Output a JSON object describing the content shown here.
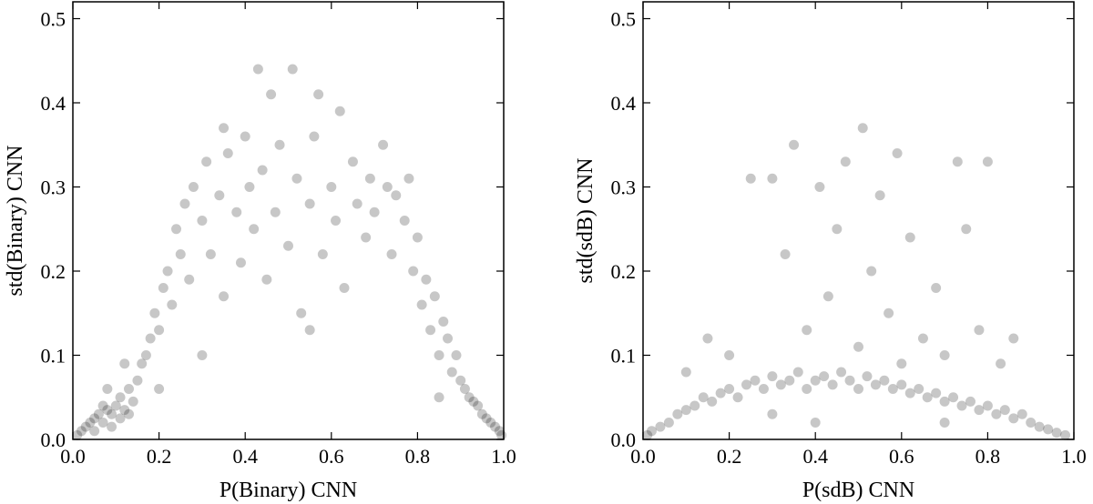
{
  "chart_data": [
    {
      "type": "scatter",
      "xlabel": "P(Binary) CNN",
      "ylabel": "std(Binary) CNN",
      "color": "#000000",
      "opacity": 0.22,
      "xlim": [
        0,
        1
      ],
      "ylim": [
        0,
        0.52
      ],
      "xticks": [
        {
          "value": 0,
          "label": "0.0"
        },
        0.2,
        0.4,
        0.6,
        0.8,
        {
          "value": 1,
          "label": "1.0"
        }
      ],
      "yticks": [
        {
          "value": 0,
          "label": "0.0"
        },
        0.1,
        0.2,
        0.3,
        0.4,
        0.5
      ],
      "x": [
        0.01,
        0.02,
        0.03,
        0.04,
        0.05,
        0.06,
        0.07,
        0.08,
        0.09,
        0.1,
        0.11,
        0.12,
        0.13,
        0.14,
        0.05,
        0.07,
        0.09,
        0.11,
        0.13,
        0.15,
        0.16,
        0.17,
        0.18,
        0.19,
        0.2,
        0.21,
        0.22,
        0.23,
        0.24,
        0.25,
        0.26,
        0.27,
        0.28,
        0.3,
        0.31,
        0.32,
        0.34,
        0.35,
        0.36,
        0.38,
        0.39,
        0.4,
        0.41,
        0.42,
        0.43,
        0.44,
        0.45,
        0.46,
        0.47,
        0.48,
        0.5,
        0.51,
        0.52,
        0.53,
        0.55,
        0.56,
        0.57,
        0.58,
        0.6,
        0.61,
        0.62,
        0.63,
        0.65,
        0.66,
        0.68,
        0.69,
        0.7,
        0.72,
        0.73,
        0.74,
        0.75,
        0.77,
        0.78,
        0.79,
        0.8,
        0.81,
        0.82,
        0.83,
        0.84,
        0.85,
        0.86,
        0.87,
        0.88,
        0.89,
        0.9,
        0.91,
        0.92,
        0.93,
        0.94,
        0.95,
        0.96,
        0.97,
        0.98,
        0.99,
        0.995,
        0.08,
        0.12,
        0.2,
        0.3,
        0.85,
        0.35,
        0.55
      ],
      "y": [
        0.005,
        0.01,
        0.015,
        0.02,
        0.025,
        0.03,
        0.02,
        0.035,
        0.03,
        0.04,
        0.025,
        0.035,
        0.03,
        0.045,
        0.01,
        0.04,
        0.015,
        0.05,
        0.06,
        0.07,
        0.09,
        0.1,
        0.12,
        0.15,
        0.13,
        0.18,
        0.2,
        0.16,
        0.25,
        0.22,
        0.28,
        0.19,
        0.3,
        0.26,
        0.33,
        0.22,
        0.29,
        0.17,
        0.34,
        0.27,
        0.21,
        0.36,
        0.3,
        0.25,
        0.44,
        0.32,
        0.19,
        0.41,
        0.27,
        0.35,
        0.23,
        0.44,
        0.31,
        0.15,
        0.28,
        0.36,
        0.41,
        0.22,
        0.3,
        0.26,
        0.39,
        0.18,
        0.33,
        0.28,
        0.24,
        0.31,
        0.27,
        0.35,
        0.3,
        0.22,
        0.29,
        0.26,
        0.31,
        0.2,
        0.24,
        0.16,
        0.19,
        0.13,
        0.17,
        0.1,
        0.14,
        0.12,
        0.08,
        0.1,
        0.07,
        0.06,
        0.05,
        0.045,
        0.04,
        0.03,
        0.025,
        0.02,
        0.015,
        0.01,
        0.005,
        0.06,
        0.09,
        0.06,
        0.1,
        0.05,
        0.37,
        0.13
      ]
    },
    {
      "type": "scatter",
      "xlabel": "P(sdB) CNN",
      "ylabel": "std(sdB) CNN",
      "color": "#000000",
      "opacity": 0.22,
      "xlim": [
        0,
        1
      ],
      "ylim": [
        0,
        0.52
      ],
      "xticks": [
        {
          "value": 0,
          "label": "0.0"
        },
        0.2,
        0.4,
        0.6,
        0.8,
        {
          "value": 1,
          "label": "1.0"
        }
      ],
      "yticks": [
        {
          "value": 0,
          "label": "0.0"
        },
        0.1,
        0.2,
        0.3,
        0.4,
        0.5
      ],
      "x": [
        0.01,
        0.02,
        0.04,
        0.06,
        0.08,
        0.1,
        0.12,
        0.14,
        0.16,
        0.18,
        0.2,
        0.22,
        0.24,
        0.26,
        0.28,
        0.3,
        0.32,
        0.34,
        0.36,
        0.38,
        0.4,
        0.42,
        0.44,
        0.46,
        0.48,
        0.5,
        0.52,
        0.54,
        0.56,
        0.58,
        0.6,
        0.62,
        0.64,
        0.66,
        0.68,
        0.7,
        0.72,
        0.74,
        0.76,
        0.78,
        0.8,
        0.82,
        0.84,
        0.86,
        0.88,
        0.9,
        0.92,
        0.94,
        0.96,
        0.98,
        0.15,
        0.2,
        0.25,
        0.3,
        0.33,
        0.35,
        0.38,
        0.41,
        0.43,
        0.45,
        0.47,
        0.5,
        0.51,
        0.53,
        0.55,
        0.57,
        0.59,
        0.62,
        0.65,
        0.68,
        0.7,
        0.73,
        0.75,
        0.78,
        0.8,
        0.83,
        0.86,
        0.1,
        0.6,
        0.4,
        0.7,
        0.3
      ],
      "y": [
        0.005,
        0.01,
        0.015,
        0.02,
        0.03,
        0.035,
        0.04,
        0.05,
        0.045,
        0.055,
        0.06,
        0.05,
        0.065,
        0.07,
        0.06,
        0.075,
        0.065,
        0.07,
        0.08,
        0.06,
        0.07,
        0.075,
        0.065,
        0.08,
        0.07,
        0.06,
        0.075,
        0.065,
        0.07,
        0.06,
        0.065,
        0.055,
        0.06,
        0.05,
        0.055,
        0.045,
        0.05,
        0.04,
        0.045,
        0.035,
        0.04,
        0.03,
        0.035,
        0.025,
        0.03,
        0.02,
        0.015,
        0.012,
        0.008,
        0.005,
        0.12,
        0.1,
        0.31,
        0.31,
        0.22,
        0.35,
        0.13,
        0.3,
        0.17,
        0.25,
        0.33,
        0.11,
        0.37,
        0.2,
        0.29,
        0.15,
        0.34,
        0.24,
        0.12,
        0.18,
        0.1,
        0.33,
        0.25,
        0.13,
        0.33,
        0.09,
        0.12,
        0.08,
        0.09,
        0.02,
        0.02,
        0.03
      ]
    }
  ]
}
